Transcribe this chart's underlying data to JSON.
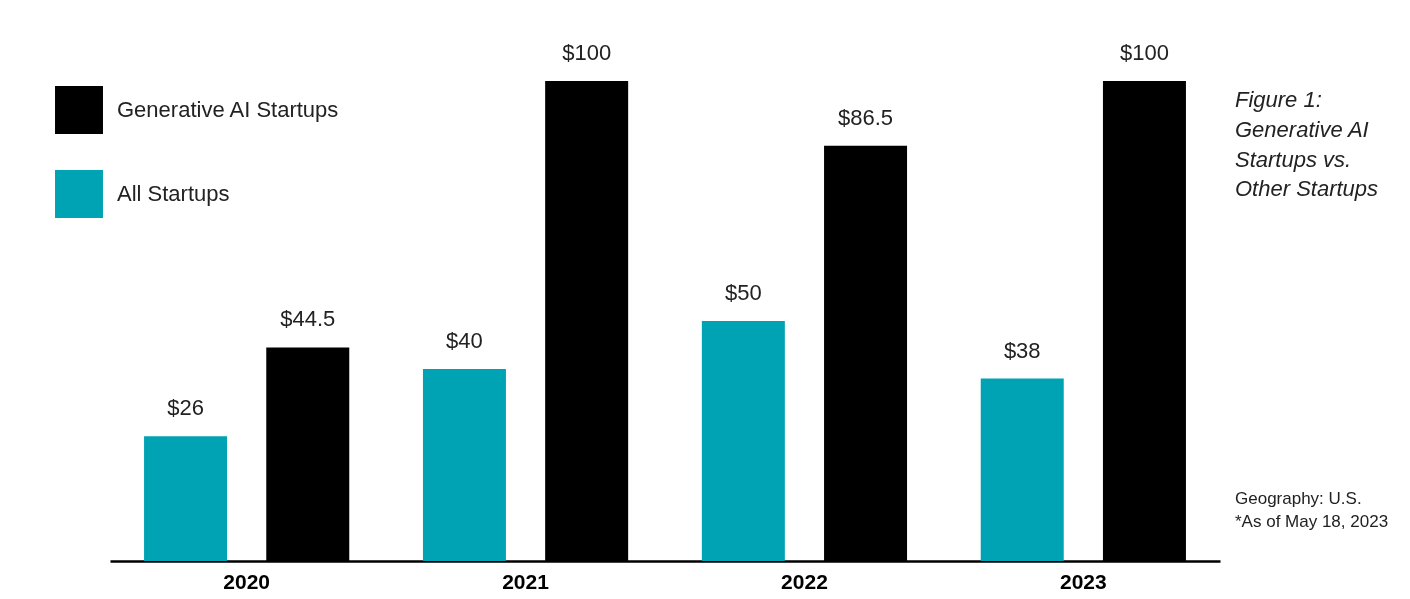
{
  "chart_data": {
    "type": "bar",
    "title": "Figure 1: Generative AI Startups vs. Other Startups",
    "categories": [
      "2020",
      "2021",
      "2022",
      "2023"
    ],
    "series": [
      {
        "name": "All Startups",
        "color": "#00a3b4",
        "values": [
          26,
          40,
          50,
          38
        ],
        "value_labels": [
          "$26",
          "$40",
          "$50",
          "$38"
        ]
      },
      {
        "name": "Generative AI Startups",
        "color": "#000000",
        "values": [
          44.5,
          100,
          86.5,
          100
        ],
        "value_labels": [
          "$44.5",
          "$100",
          "$86.5",
          "$100"
        ]
      }
    ],
    "annotations": [
      "Geography: U.S.",
      "*As of May 18, 2023"
    ],
    "legend": "top left",
    "tick_labels": "x"
  }
}
